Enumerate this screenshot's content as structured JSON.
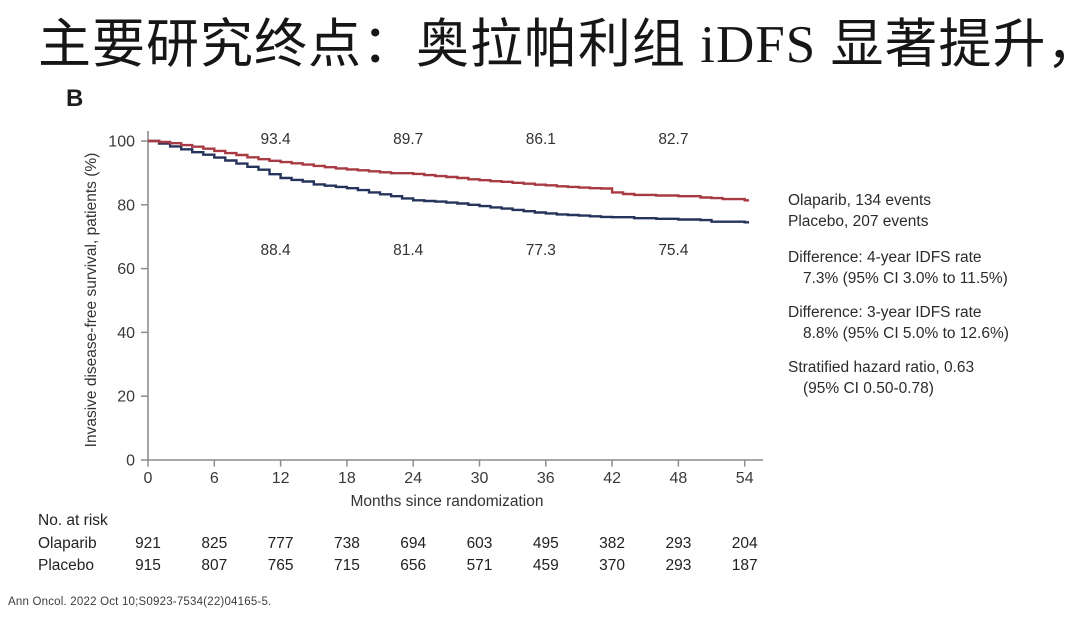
{
  "title": "主要研究终点：奥拉帕利组 iDFS 显著提升，",
  "figure": {
    "panel_label": "B",
    "citation": "Ann Oncol. 2022 Oct 10;S0923-7534(22)04165-5."
  },
  "legend": {
    "events": [
      "Olaparib, 134 events",
      "Placebo, 207 events"
    ],
    "stats": [
      {
        "line1": "Difference: 4-year IDFS rate",
        "line2": "7.3% (95% CI 3.0% to 11.5%)"
      },
      {
        "line1": "Difference: 3-year IDFS rate",
        "line2": "8.8% (95% CI 5.0% to 12.6%)"
      },
      {
        "line1": "Stratified hazard ratio, 0.63",
        "line2": "(95% CI 0.50-0.78)"
      }
    ]
  },
  "chart_data": {
    "type": "line",
    "subtype": "kaplan-meier",
    "xlabel": "Months since randomization",
    "ylabel": "Invasive disease-free survival, patients (%)",
    "xlim": [
      0,
      55
    ],
    "ylim": [
      0,
      100
    ],
    "x_ticks": [
      0,
      6,
      12,
      18,
      24,
      30,
      36,
      42,
      48,
      54
    ],
    "y_ticks": [
      0,
      20,
      40,
      60,
      80,
      100
    ],
    "grid": false,
    "axis_color": "#8c8c8c",
    "series": [
      {
        "name": "Olaparib",
        "events": 134,
        "color": "#a73a42",
        "annotations": [
          {
            "x": 12,
            "label": "93.4"
          },
          {
            "x": 24,
            "label": "89.7"
          },
          {
            "x": 36,
            "label": "86.1"
          },
          {
            "x": 48,
            "label": "82.7"
          }
        ],
        "points": [
          [
            0,
            100
          ],
          [
            1,
            99.7
          ],
          [
            2,
            99.3
          ],
          [
            3,
            98.7
          ],
          [
            4,
            98.2
          ],
          [
            5,
            97.6
          ],
          [
            6,
            96.9
          ],
          [
            7,
            96.2
          ],
          [
            8,
            95.6
          ],
          [
            9,
            94.9
          ],
          [
            10,
            94.3
          ],
          [
            11,
            93.8
          ],
          [
            12,
            93.4
          ],
          [
            13,
            93.0
          ],
          [
            14,
            92.6
          ],
          [
            15,
            92.2
          ],
          [
            16,
            91.8
          ],
          [
            17,
            91.4
          ],
          [
            18,
            91.1
          ],
          [
            19,
            90.8
          ],
          [
            20,
            90.5
          ],
          [
            21,
            90.2
          ],
          [
            22,
            89.9
          ],
          [
            24,
            89.7
          ],
          [
            25,
            89.3
          ],
          [
            26,
            89.0
          ],
          [
            27,
            88.7
          ],
          [
            28,
            88.4
          ],
          [
            29,
            88.0
          ],
          [
            30,
            87.7
          ],
          [
            31,
            87.4
          ],
          [
            32,
            87.2
          ],
          [
            33,
            86.9
          ],
          [
            34,
            86.6
          ],
          [
            35,
            86.3
          ],
          [
            36,
            86.1
          ],
          [
            37,
            85.8
          ],
          [
            38,
            85.6
          ],
          [
            39,
            85.4
          ],
          [
            40,
            85.2
          ],
          [
            41,
            85.1
          ],
          [
            42,
            83.9
          ],
          [
            43,
            83.4
          ],
          [
            44,
            83.1
          ],
          [
            46,
            82.9
          ],
          [
            48,
            82.7
          ],
          [
            50,
            82.3
          ],
          [
            51,
            82.1
          ],
          [
            52,
            81.8
          ],
          [
            54,
            81.4
          ],
          [
            54.4,
            81.4
          ]
        ]
      },
      {
        "name": "Placebo",
        "events": 207,
        "color": "#26345c",
        "annotations": [
          {
            "x": 12,
            "label": "88.4"
          },
          {
            "x": 24,
            "label": "81.4"
          },
          {
            "x": 36,
            "label": "77.3"
          },
          {
            "x": 48,
            "label": "75.4"
          }
        ],
        "points": [
          [
            0,
            100
          ],
          [
            1,
            99.2
          ],
          [
            2,
            98.3
          ],
          [
            3,
            97.4
          ],
          [
            4,
            96.5
          ],
          [
            5,
            95.7
          ],
          [
            6,
            94.8
          ],
          [
            7,
            93.9
          ],
          [
            8,
            92.9
          ],
          [
            9,
            91.9
          ],
          [
            10,
            91.0
          ],
          [
            11,
            89.6
          ],
          [
            12,
            88.4
          ],
          [
            13,
            87.8
          ],
          [
            14,
            87.3
          ],
          [
            15,
            86.4
          ],
          [
            16,
            86.0
          ],
          [
            17,
            85.6
          ],
          [
            18,
            85.2
          ],
          [
            19,
            84.6
          ],
          [
            20,
            83.9
          ],
          [
            21,
            83.3
          ],
          [
            22,
            82.7
          ],
          [
            23,
            82.0
          ],
          [
            24,
            81.4
          ],
          [
            25,
            81.2
          ],
          [
            26,
            81.0
          ],
          [
            27,
            80.7
          ],
          [
            28,
            80.4
          ],
          [
            29,
            80.0
          ],
          [
            30,
            79.6
          ],
          [
            31,
            79.2
          ],
          [
            32,
            78.8
          ],
          [
            33,
            78.4
          ],
          [
            34,
            78.0
          ],
          [
            35,
            77.6
          ],
          [
            36,
            77.3
          ],
          [
            37,
            77.0
          ],
          [
            38,
            76.8
          ],
          [
            39,
            76.6
          ],
          [
            40,
            76.4
          ],
          [
            41,
            76.2
          ],
          [
            42,
            76.1
          ],
          [
            44,
            75.8
          ],
          [
            46,
            75.6
          ],
          [
            48,
            75.4
          ],
          [
            50,
            75.2
          ],
          [
            51,
            74.7
          ],
          [
            54,
            74.5
          ],
          [
            54.4,
            74.5
          ]
        ]
      }
    ],
    "risk_table": {
      "label": "No. at risk",
      "rows": [
        {
          "name": "Olaparib",
          "values": [
            921,
            825,
            777,
            738,
            694,
            603,
            495,
            382,
            293,
            204
          ]
        },
        {
          "name": "Placebo",
          "values": [
            915,
            807,
            765,
            715,
            656,
            571,
            459,
            370,
            293,
            187
          ]
        }
      ]
    }
  }
}
